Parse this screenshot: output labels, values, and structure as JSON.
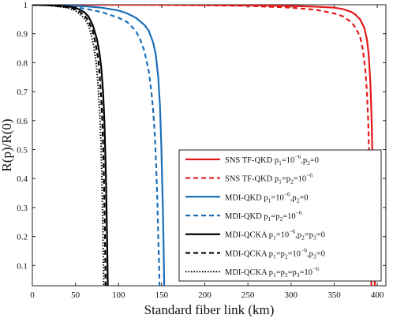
{
  "chart_data": {
    "type": "line",
    "title": "",
    "xlabel": "Standard fiber link (km)",
    "ylabel": "R(p)/R(0)",
    "xlim": [
      0,
      410
    ],
    "ylim": [
      0.03,
      1
    ],
    "xticks": [
      0,
      50,
      100,
      150,
      200,
      250,
      300,
      350,
      400
    ],
    "yticks": [
      0.1,
      0.2,
      0.3,
      0.4,
      0.5,
      0.6,
      0.7,
      0.8,
      0.9,
      1
    ],
    "grid": false,
    "legend_position": "lower-right",
    "series": [
      {
        "name": "SNS TF-QKD p1=10^-6,p2=0",
        "color": "#e31a1c",
        "dash": "solid",
        "points": [
          [
            0,
            1
          ],
          [
            50,
            1
          ],
          [
            100,
            1
          ],
          [
            150,
            1
          ],
          [
            200,
            0.999
          ],
          [
            250,
            0.998
          ],
          [
            300,
            0.996
          ],
          [
            330,
            0.993
          ],
          [
            350,
            0.99
          ],
          [
            360,
            0.985
          ],
          [
            370,
            0.975
          ],
          [
            375,
            0.965
          ],
          [
            380,
            0.95
          ],
          [
            385,
            0.92
          ],
          [
            388,
            0.88
          ],
          [
            390,
            0.83
          ],
          [
            392,
            0.73
          ],
          [
            393.5,
            0.6
          ],
          [
            394.5,
            0.45
          ],
          [
            395.5,
            0.3
          ],
          [
            396.5,
            0.15
          ],
          [
            397.2,
            0.03
          ]
        ]
      },
      {
        "name": "SNS TF-QKD p1=p2=10^-6",
        "color": "#e31a1c",
        "dash": "dashed",
        "points": [
          [
            0,
            1
          ],
          [
            50,
            1
          ],
          [
            100,
            1
          ],
          [
            150,
            0.999
          ],
          [
            200,
            0.998
          ],
          [
            250,
            0.996
          ],
          [
            300,
            0.99
          ],
          [
            330,
            0.982
          ],
          [
            350,
            0.97
          ],
          [
            360,
            0.96
          ],
          [
            370,
            0.94
          ],
          [
            375,
            0.92
          ],
          [
            380,
            0.89
          ],
          [
            383,
            0.85
          ],
          [
            386,
            0.78
          ],
          [
            388,
            0.7
          ],
          [
            389.5,
            0.6
          ],
          [
            390.8,
            0.45
          ],
          [
            391.8,
            0.3
          ],
          [
            392.6,
            0.15
          ],
          [
            393.2,
            0.03
          ]
        ]
      },
      {
        "name": "MDI-QKD p1=10^-6,p2=0",
        "color": "#1a6fb8",
        "dash": "solid",
        "points": [
          [
            0,
            1
          ],
          [
            20,
            0.999
          ],
          [
            40,
            0.997
          ],
          [
            60,
            0.995
          ],
          [
            80,
            0.99
          ],
          [
            100,
            0.98
          ],
          [
            110,
            0.97
          ],
          [
            120,
            0.955
          ],
          [
            130,
            0.93
          ],
          [
            135,
            0.91
          ],
          [
            140,
            0.87
          ],
          [
            143,
            0.83
          ],
          [
            146,
            0.75
          ],
          [
            148,
            0.65
          ],
          [
            149.5,
            0.52
          ],
          [
            150.5,
            0.4
          ],
          [
            151.5,
            0.28
          ],
          [
            152.3,
            0.15
          ],
          [
            152.9,
            0.03
          ]
        ]
      },
      {
        "name": "MDI-QKD p1=p2=10^-6",
        "color": "#1a6fb8",
        "dash": "dashed",
        "points": [
          [
            0,
            1
          ],
          [
            20,
            0.998
          ],
          [
            40,
            0.994
          ],
          [
            60,
            0.987
          ],
          [
            80,
            0.975
          ],
          [
            100,
            0.955
          ],
          [
            110,
            0.94
          ],
          [
            120,
            0.91
          ],
          [
            125,
            0.88
          ],
          [
            130,
            0.84
          ],
          [
            135,
            0.77
          ],
          [
            138,
            0.7
          ],
          [
            140,
            0.64
          ],
          [
            142,
            0.55
          ],
          [
            143.5,
            0.45
          ],
          [
            145,
            0.32
          ],
          [
            146,
            0.2
          ],
          [
            147,
            0.1
          ],
          [
            147.5,
            0.03
          ]
        ]
      },
      {
        "name": "MDI-QCKA p1=10^-6,p2=p3=0",
        "color": "#000000",
        "dash": "solid",
        "points": [
          [
            0,
            1
          ],
          [
            20,
            0.999
          ],
          [
            40,
            0.995
          ],
          [
            50,
            0.99
          ],
          [
            60,
            0.975
          ],
          [
            65,
            0.96
          ],
          [
            70,
            0.93
          ],
          [
            75,
            0.88
          ],
          [
            78,
            0.83
          ],
          [
            80,
            0.78
          ],
          [
            82,
            0.7
          ],
          [
            83.5,
            0.6
          ],
          [
            84.5,
            0.5
          ],
          [
            85.5,
            0.38
          ],
          [
            86.3,
            0.25
          ],
          [
            87,
            0.13
          ],
          [
            87.5,
            0.03
          ]
        ]
      },
      {
        "name": "MDI-QCKA p1=p2=10^-6,p3=0",
        "color": "#000000",
        "dash": "dashed",
        "points": [
          [
            0,
            1
          ],
          [
            20,
            0.998
          ],
          [
            40,
            0.992
          ],
          [
            50,
            0.985
          ],
          [
            60,
            0.965
          ],
          [
            65,
            0.945
          ],
          [
            70,
            0.91
          ],
          [
            73,
            0.87
          ],
          [
            76,
            0.82
          ],
          [
            78,
            0.76
          ],
          [
            80,
            0.67
          ],
          [
            81.5,
            0.57
          ],
          [
            82.5,
            0.47
          ],
          [
            83.3,
            0.36
          ],
          [
            84,
            0.24
          ],
          [
            84.6,
            0.12
          ],
          [
            85,
            0.03
          ]
        ]
      },
      {
        "name": "MDI-QCKA p1=p2=p3=10^-6",
        "color": "#000000",
        "dash": "dotted",
        "points": [
          [
            0,
            1
          ],
          [
            20,
            0.997
          ],
          [
            40,
            0.99
          ],
          [
            50,
            0.98
          ],
          [
            60,
            0.955
          ],
          [
            65,
            0.93
          ],
          [
            68,
            0.9
          ],
          [
            71,
            0.86
          ],
          [
            74,
            0.8
          ],
          [
            76,
            0.73
          ],
          [
            78,
            0.63
          ],
          [
            79.5,
            0.53
          ],
          [
            80.5,
            0.42
          ],
          [
            81.3,
            0.3
          ],
          [
            82,
            0.18
          ],
          [
            82.6,
            0.07
          ],
          [
            82.8,
            0.03
          ]
        ]
      }
    ]
  },
  "legend": {
    "entries": [
      {
        "prefix": "SNS TF-QKD ",
        "parts": [
          [
            "p",
            "1",
            "=10",
            "−6",
            ",p",
            "2",
            "=0"
          ]
        ]
      },
      {
        "prefix": "SNS TF-QKD ",
        "parts": [
          [
            "p",
            "1",
            "=p",
            "2",
            "=10",
            "−6"
          ]
        ]
      },
      {
        "prefix": "MDI-QKD ",
        "parts": [
          [
            "p",
            "1",
            "=10",
            "−6",
            ",p",
            "2",
            "=0"
          ]
        ]
      },
      {
        "prefix": "MDI-QKD ",
        "parts": [
          [
            "p",
            "1",
            "=p",
            "2",
            "=10",
            "−6"
          ]
        ]
      },
      {
        "prefix": "MDI-QCKA ",
        "parts": [
          [
            "p",
            "1",
            "=10",
            "−6",
            ",p",
            "2",
            "=p",
            "3",
            "=0"
          ]
        ]
      },
      {
        "prefix": "MDI-QCKA ",
        "parts": [
          [
            "p",
            "1",
            "=p",
            "2",
            "=10",
            "−6",
            ",p",
            "3",
            "=0"
          ]
        ]
      },
      {
        "prefix": "MDI-QCKA ",
        "parts": [
          [
            "p",
            "1",
            "=p",
            "2",
            "=p",
            "3",
            "=10",
            "−6"
          ]
        ]
      }
    ]
  }
}
